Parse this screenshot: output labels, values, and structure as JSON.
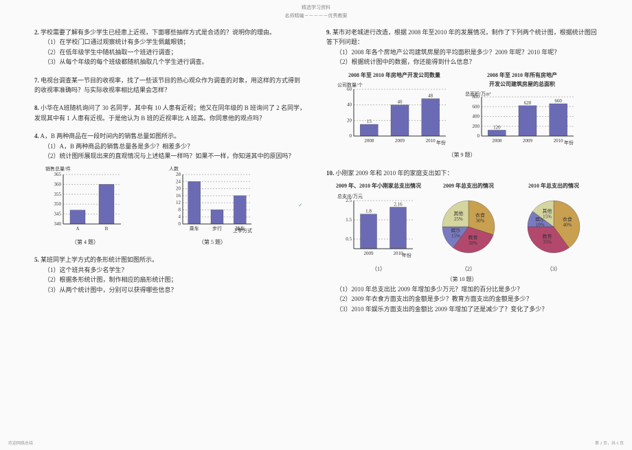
{
  "header_small": "精选学习资料",
  "header_sub": "名师精编－－－－－优秀教案",
  "left": {
    "q2": {
      "num": "2.",
      "stem": "学校需要了解有多少学生已经患上近视，下面哪些抽样方式是合适的？说明你的理由。",
      "p1": "（1）在学校门口通过观察统计有多少学生佩戴眼镜；",
      "p2": "（2）在低年级学生中随机抽取一个班进行调查；",
      "p3": "（3）从每个年级的每个班级都随机抽取几个学生进行调查。"
    },
    "q7": {
      "num": "7.",
      "text": "电视台调查某一节目的收视率，找了一些该节目的热心观众作为调查的对象，用这样的方式得到的收视率准确吗？与实际收视率相比结果会怎样？"
    },
    "q8": {
      "num": "8.",
      "text": "小华在A班随机询问了 30 名同学，其中有 10 人患有近视；他又在同年级的 B 班询问了 2 名同学，发现其中有 1 人患有近视。于是他认为 B 班的近视率比 A 班高。你同意他的观点吗？"
    },
    "q4": {
      "num": "4.",
      "stem": "A，B 两种商品在一段时间内的销售总量如图所示。",
      "p1": "（1）A，B 两种商品的销售总量各是多少？相差多少？",
      "p2": "（2）统计图所展现出来的直观情况与上述结果一样吗？如果不一样，你知道其中的原因吗？",
      "chart": {
        "ylabel": "销售总量/件",
        "categories": [
          "A",
          "B"
        ],
        "values": [
          347,
          360
        ],
        "ylim": [
          340,
          365
        ],
        "ytick_step": 5,
        "bar_color": "#6b6bb5",
        "grid_color": "#bbb",
        "bg": "#ffffff",
        "caption": "（第 4 题）"
      }
    },
    "q5": {
      "num": "5.",
      "stem": "某班同学上学方式的条形统计图如图所示。",
      "p1": "（1）这个班共有多少名学生？",
      "p2": "（2）根据条形统计图，制作相应的扇形统计图；",
      "p3": "（3）从两个统计图中，分别可以获得哪些信息？",
      "chart": {
        "ylabel": "人数",
        "xlabel": "上学方式",
        "categories": [
          "乘车",
          "步行",
          "骑车"
        ],
        "values": [
          24,
          8,
          16
        ],
        "ylim": [
          0,
          28
        ],
        "ytick_step": 4,
        "bar_color": "#6b6bb5",
        "grid_color": "#bbb",
        "bg": "#ffffff",
        "caption": "（第 5 题）"
      }
    }
  },
  "right": {
    "q9": {
      "num": "9.",
      "stem": "某市对老城进行改造，根据 2008 年至2010 年的发展情况，制作了下列两个统计图，根据统计图回答下列问题：",
      "p1": "（1）2008 年各个房地产公司建筑房屋的平均面积是多少？2009 年呢？2010 年呢？",
      "p2": "（2）根据统计图中的数据，你还能得到什么信息？",
      "chart1": {
        "title": "2008 年至 2010 年房地产开发公司数量",
        "ylabel": "公司数量/个",
        "xlabel": "年份",
        "categories": [
          "2008",
          "2009",
          "2010"
        ],
        "values": [
          15,
          40,
          48
        ],
        "labels": [
          "15",
          "40",
          "48"
        ],
        "ylim": [
          0,
          60
        ],
        "ytick_step": 20,
        "bar_color": "#6b6bb5",
        "grid_color": "#bbb",
        "bg": "#ffffff"
      },
      "chart2": {
        "title1": "2008 年至 2010 年所有房地产",
        "title2": "开发公司建筑房屋的总面积",
        "ylabel": "总面积/万m²",
        "xlabel": "年份",
        "categories": [
          "2008",
          "2009",
          "2010"
        ],
        "values": [
          120,
          620,
          660
        ],
        "labels": [
          "120",
          "620",
          "660"
        ],
        "ylim": [
          0,
          800
        ],
        "ytick_step": 200,
        "bar_color": "#6b6bb5",
        "grid_color": "#bbb",
        "bg": "#ffffff"
      },
      "caption": "（第 9 题）"
    },
    "q10": {
      "num": "10.",
      "stem": "小刚家 2009 年和 2010 年的家庭支出如下：",
      "bar": {
        "title": "2009 年、2010 年小刚家总支出情况",
        "ylabel": "总支出/万元",
        "xlabel": "年份",
        "categories": [
          "2009",
          "2010"
        ],
        "values": [
          1.8,
          2.16
        ],
        "labels": [
          "1.8",
          "2.16"
        ],
        "ylim": [
          0,
          2.5
        ],
        "yticks": [
          "0.5",
          "1.5",
          "2.5"
        ],
        "bar_color": "#6b6bb5",
        "grid_color": "#bbb",
        "bg": "#ffffff",
        "sub": "（1）"
      },
      "pie2009": {
        "title": "2009 年总支出的情况",
        "slices": [
          {
            "label": "衣食",
            "pct": 30,
            "color": "#c9a050"
          },
          {
            "label": "教育",
            "pct": 30,
            "color": "#b3486d"
          },
          {
            "label": "娱乐",
            "pct": 15,
            "color": "#7a7ac0"
          },
          {
            "label": "其他",
            "pct": 25,
            "color": "#d5d5a0"
          }
        ],
        "sub": "（2）"
      },
      "pie2010": {
        "title": "2010 年总支出的情况",
        "slices": [
          {
            "label": "衣食",
            "pct": 40,
            "color": "#c9a050"
          },
          {
            "label": "教育",
            "pct": 35,
            "color": "#b3486d"
          },
          {
            "label": "娱乐",
            "pct": 10,
            "color": "#7a7ac0"
          },
          {
            "label": "其他",
            "pct": 15,
            "color": "#d5d5a0"
          }
        ],
        "sub": "（3）"
      },
      "caption": "（第 10 题）",
      "pq1": "（1）2010 年总支出比 2009 年增加多少万元？增加的百分比是多少？",
      "pq2": "（2）2009 年衣食方面支出的金额是多少？教育方面支出的金额是多少？",
      "pq3": "（3）2010 年娱乐方面支出的金额比 2009 年增加了还是减少了？变化了多少？"
    }
  },
  "footer_left": "欢迎网络总结",
  "footer_right": "第 2 页，共 6 页"
}
